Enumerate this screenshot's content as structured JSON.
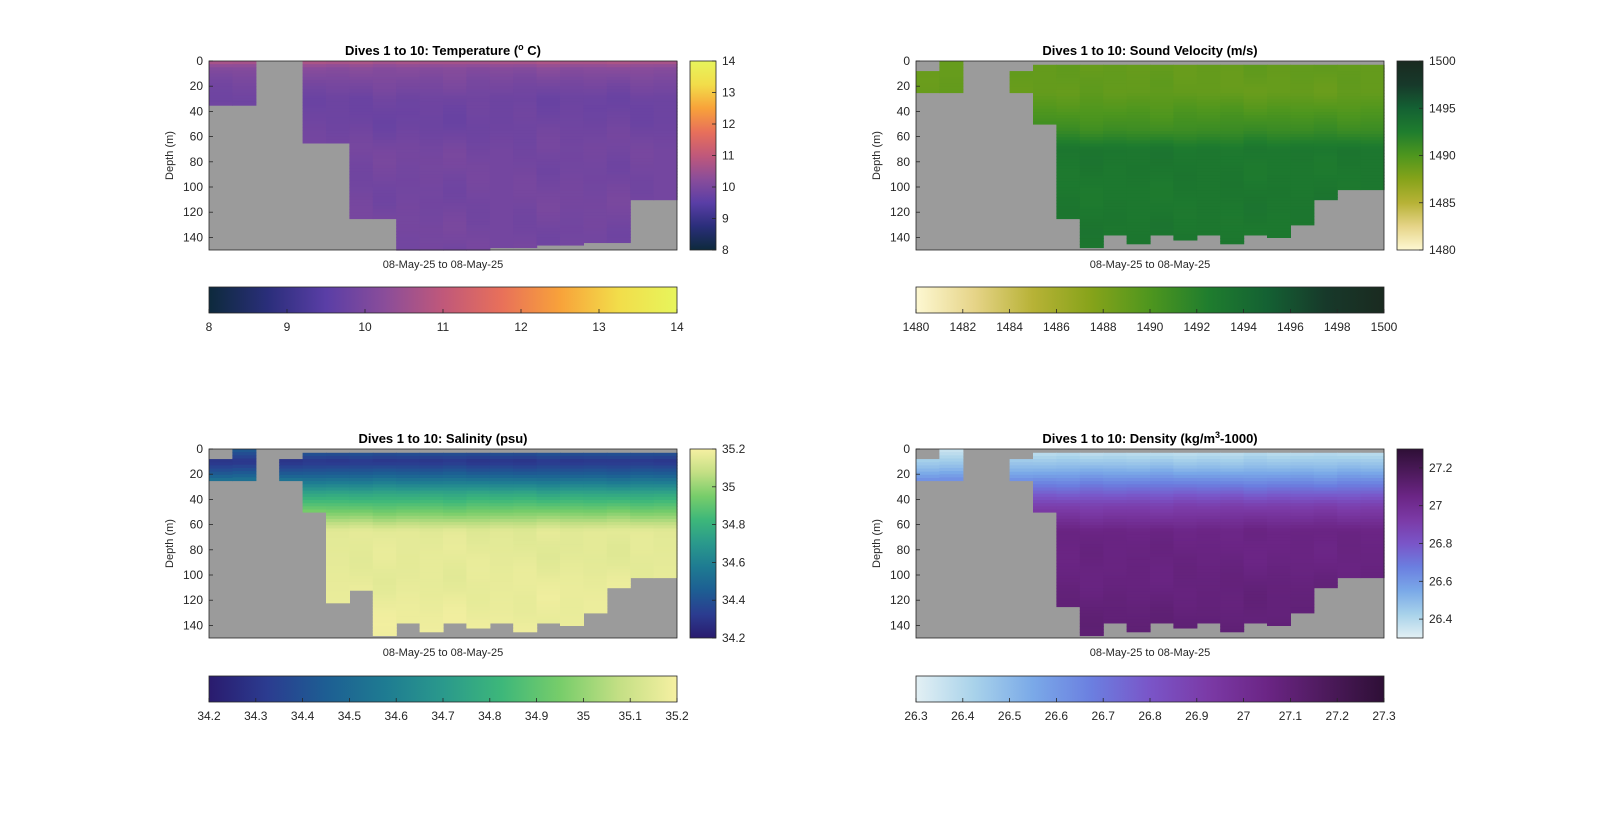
{
  "figure": {
    "background": "#ffffff",
    "missing_color": "#9b9b9b"
  },
  "chart_data": [
    {
      "type": "heatmap",
      "id": "temperature",
      "title": "Dives 1 to 10: Temperature (",
      "title_sup": "o",
      "title_end": " C)",
      "xlabel": "08-May-25 to 08-May-25",
      "ylabel": "Depth (m)",
      "ylim": [
        150,
        0
      ],
      "yticks": [
        0,
        20,
        40,
        60,
        80,
        100,
        120,
        140
      ],
      "columns": 20,
      "data_depth_by_column": [
        35,
        35,
        0,
        0,
        65,
        65,
        125,
        125,
        150,
        150,
        150,
        150,
        148,
        148,
        146,
        146,
        144,
        144,
        110,
        110
      ],
      "surface_start_by_column": [
        0,
        0,
        0,
        0,
        0,
        0,
        0,
        0,
        0,
        0,
        0,
        0,
        0,
        0,
        0,
        0,
        0,
        0,
        0,
        0
      ],
      "profile": [
        [
          0,
          10.8
        ],
        [
          5,
          10.2
        ],
        [
          15,
          10.0
        ],
        [
          30,
          9.8
        ],
        [
          50,
          9.8
        ],
        [
          70,
          9.9
        ],
        [
          150,
          9.9
        ]
      ],
      "color_scale": {
        "min": 8,
        "max": 14,
        "stops": [
          "#0d2a3c",
          "#2a2e7a",
          "#5a3ea6",
          "#8a4d9a",
          "#c0587a",
          "#e8705a",
          "#f8a23a",
          "#f2dd4a",
          "#e7f55c"
        ]
      },
      "colorbar_vertical_ticks": [
        8,
        9,
        10,
        11,
        12,
        13,
        14
      ],
      "colorbar_horizontal_ticks": [
        8,
        9,
        10,
        11,
        12,
        13,
        14
      ]
    },
    {
      "type": "heatmap",
      "id": "sound_velocity",
      "title": "Dives 1 to 10: Sound Velocity (m/s)",
      "xlabel": "08-May-25 to 08-May-25",
      "ylabel": "Depth (m)",
      "ylim": [
        150,
        0
      ],
      "yticks": [
        0,
        20,
        40,
        60,
        80,
        100,
        120,
        140
      ],
      "columns": 20,
      "data_depth_by_column": [
        25,
        25,
        0,
        0,
        25,
        50,
        125,
        148,
        138,
        145,
        138,
        142,
        138,
        145,
        138,
        140,
        130,
        110,
        102,
        102
      ],
      "surface_start_by_column": [
        8,
        0,
        0,
        0,
        8,
        3,
        3,
        3,
        3,
        3,
        3,
        3,
        3,
        3,
        3,
        3,
        3,
        3,
        3,
        3
      ],
      "profile": [
        [
          0,
          1489
        ],
        [
          25,
          1489
        ],
        [
          40,
          1490
        ],
        [
          55,
          1491
        ],
        [
          70,
          1493
        ],
        [
          150,
          1493
        ]
      ],
      "color_scale": {
        "min": 1480,
        "max": 1500,
        "stops": [
          "#fdf8d2",
          "#e6d488",
          "#b7b236",
          "#86a31a",
          "#4e961e",
          "#1f7d2e",
          "#146133",
          "#17392a",
          "#1a2a20"
        ]
      },
      "colorbar_vertical_ticks": [
        1480,
        1485,
        1490,
        1495,
        1500
      ],
      "colorbar_horizontal_ticks": [
        1480,
        1482,
        1484,
        1486,
        1488,
        1490,
        1492,
        1494,
        1496,
        1498,
        1500
      ]
    },
    {
      "type": "heatmap",
      "id": "salinity",
      "title": "Dives 1 to 10: Salinity (psu)",
      "xlabel": "08-May-25 to 08-May-25",
      "ylabel": "Depth (m)",
      "ylim": [
        150,
        0
      ],
      "yticks": [
        0,
        20,
        40,
        60,
        80,
        100,
        120,
        140
      ],
      "columns": 20,
      "data_depth_by_column": [
        25,
        25,
        0,
        25,
        50,
        122,
        112,
        148,
        138,
        145,
        138,
        142,
        138,
        145,
        138,
        140,
        130,
        110,
        102,
        102
      ],
      "surface_start_by_column": [
        8,
        0,
        0,
        8,
        3,
        3,
        3,
        3,
        3,
        3,
        3,
        3,
        3,
        3,
        3,
        3,
        3,
        3,
        3,
        3
      ],
      "profile": [
        [
          0,
          34.45
        ],
        [
          10,
          34.3
        ],
        [
          20,
          34.45
        ],
        [
          35,
          34.75
        ],
        [
          50,
          34.95
        ],
        [
          65,
          35.15
        ],
        [
          150,
          35.18
        ]
      ],
      "color_scale": {
        "min": 34.2,
        "max": 35.2,
        "stops": [
          "#2a1b6e",
          "#2b3c90",
          "#1d5e93",
          "#1e7b92",
          "#2a998c",
          "#3db77a",
          "#77cd6a",
          "#c3df84",
          "#f6f0a2"
        ]
      },
      "colorbar_vertical_ticks": [
        34.2,
        34.4,
        34.6,
        34.8,
        35,
        35.2
      ],
      "colorbar_horizontal_ticks": [
        34.2,
        34.3,
        34.4,
        34.5,
        34.6,
        34.7,
        34.8,
        34.9,
        35,
        35.1,
        35.2
      ]
    },
    {
      "type": "heatmap",
      "id": "density",
      "title": "Dives 1 to 10: Density (kg/m",
      "title_sup": "3",
      "title_end": "-1000)",
      "xlabel": "08-May-25 to 08-May-25",
      "ylabel": "Depth (m)",
      "ylim": [
        150,
        0
      ],
      "yticks": [
        0,
        20,
        40,
        60,
        80,
        100,
        120,
        140
      ],
      "columns": 20,
      "data_depth_by_column": [
        25,
        25,
        0,
        0,
        25,
        50,
        125,
        148,
        138,
        145,
        138,
        142,
        138,
        145,
        138,
        140,
        130,
        110,
        102,
        102
      ],
      "surface_start_by_column": [
        8,
        0,
        0,
        0,
        8,
        3,
        3,
        3,
        3,
        3,
        3,
        3,
        3,
        3,
        3,
        3,
        3,
        3,
        3,
        3
      ],
      "profile": [
        [
          0,
          26.35
        ],
        [
          15,
          26.5
        ],
        [
          30,
          26.7
        ],
        [
          45,
          26.9
        ],
        [
          65,
          27.05
        ],
        [
          150,
          27.1
        ]
      ],
      "color_scale": {
        "min": 26.3,
        "max": 27.3,
        "stops": [
          "#e3f0f4",
          "#a8d2ea",
          "#7aa9e8",
          "#6b7fe0",
          "#7a55c8",
          "#7b3aa6",
          "#6b2585",
          "#4d1a5c",
          "#2e0f36"
        ]
      },
      "colorbar_vertical_ticks": [
        26.4,
        26.6,
        26.8,
        27,
        27.2
      ],
      "colorbar_horizontal_ticks": [
        26.3,
        26.4,
        26.5,
        26.6,
        26.7,
        26.8,
        26.9,
        27,
        27.1,
        27.2,
        27.3
      ]
    }
  ]
}
